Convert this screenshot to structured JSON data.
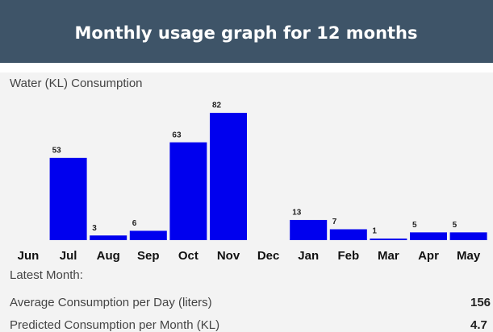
{
  "header": {
    "title": "Monthly usage graph for 12 months"
  },
  "chart_data": {
    "type": "bar",
    "title": "Water (KL) Consumption",
    "categories": [
      "Jun",
      "Jul",
      "Aug",
      "Sep",
      "Oct",
      "Nov",
      "Dec",
      "Jan",
      "Feb",
      "Mar",
      "Apr",
      "May"
    ],
    "values": [
      null,
      53,
      3,
      6,
      63,
      82,
      null,
      13,
      7,
      1,
      5,
      5
    ],
    "color": "#0000ee"
  },
  "summary": {
    "heading": "Latest Month:",
    "rows": [
      {
        "label": "Average Consumption per Day (liters)",
        "value": "156"
      },
      {
        "label": "Predicted Consumption per Month (KL)",
        "value": "4.7"
      }
    ]
  }
}
